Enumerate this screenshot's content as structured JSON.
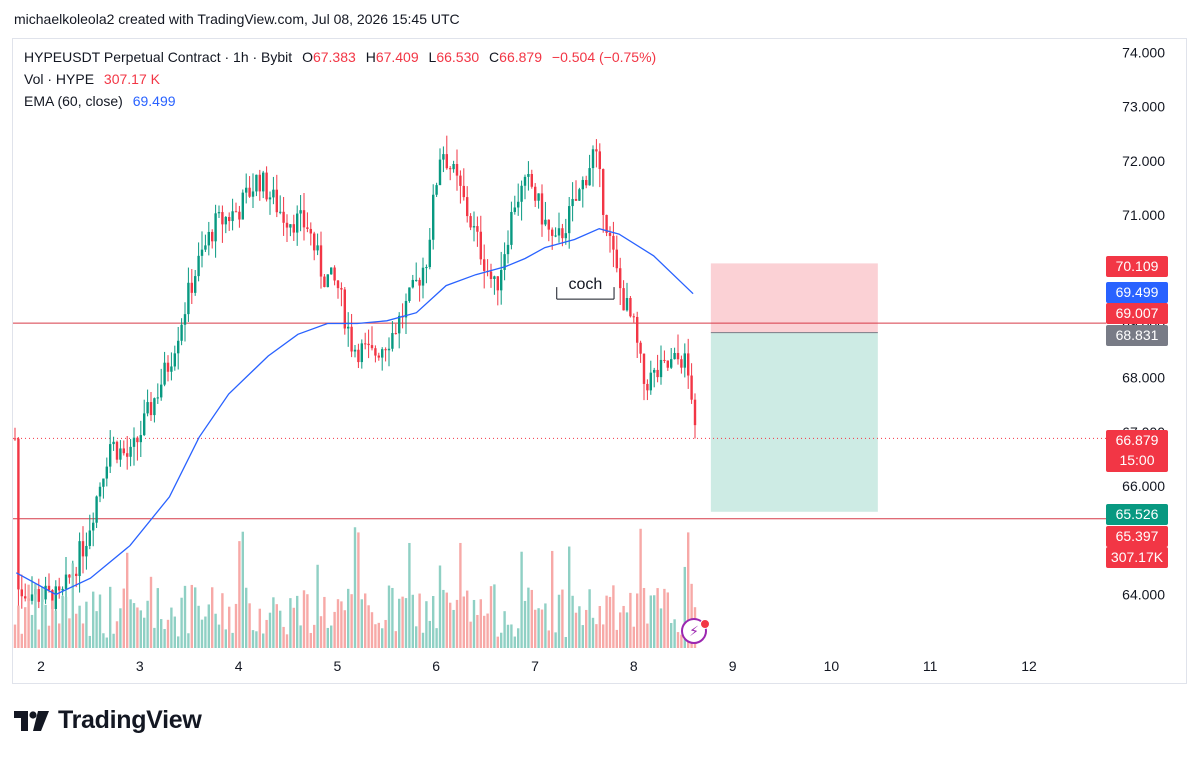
{
  "header": {
    "text": "michaelkoleola2 created with TradingView.com, Jul 08, 2026 15:45 UTC"
  },
  "legend": {
    "symbol": "HYPEUSDT Perpetual Contract · 1h · Bybit",
    "o_label": "O",
    "o_value": "67.383",
    "h_label": "H",
    "h_value": "67.409",
    "l_label": "L",
    "l_value": "66.530",
    "c_label": "C",
    "c_value": "66.879",
    "change": "−0.504 (−0.75%)",
    "vol_label": "Vol · HYPE",
    "vol_value": "307.17 K",
    "ema_label": "EMA (60, close)",
    "ema_value": "69.499"
  },
  "price_tags": {
    "tp_top": "70.109",
    "ema": "69.499",
    "hline_upper": "69.007",
    "entry": "68.831",
    "last_price": "66.879",
    "countdown": "15:00",
    "stop_bottom": "65.526",
    "hline_lower": "65.397",
    "volume": "307.17K"
  },
  "annotation": {
    "text": "coch"
  },
  "branding": {
    "name": "TradingView"
  },
  "colors": {
    "up": "#089981",
    "down": "#f23645",
    "ema": "#2962ff",
    "vol_up": "#8fd0c4",
    "vol_down": "#f7a9a7",
    "risk_zone": "#fbd1d5",
    "reward_zone": "#cdebe4",
    "hline": "#d63a48",
    "entry_tag": "#787b86"
  },
  "chart_data": {
    "type": "candlestick",
    "symbol": "HYPEUSDT",
    "timeframe": "1h",
    "y_axis": {
      "min": 63.5,
      "max": 74.3,
      "ticks": [
        "64.000",
        "66.000",
        "67.000",
        "68.000",
        "69.000",
        "70.000",
        "71.000",
        "72.000",
        "73.000",
        "74.000"
      ]
    },
    "x_axis": {
      "ticks": [
        "2",
        "3",
        "4",
        "5",
        "6",
        "7",
        "8",
        "9",
        "10",
        "11",
        "12"
      ]
    },
    "grid": false,
    "ohlc_swing_points": [
      [
        1.75,
        64.1
      ],
      [
        2.2,
        63.9
      ],
      [
        2.45,
        65.0
      ],
      [
        2.7,
        66.8
      ],
      [
        2.9,
        66.5
      ],
      [
        3.3,
        68.3
      ],
      [
        3.55,
        69.9
      ],
      [
        3.75,
        70.8
      ],
      [
        4.0,
        71.1
      ],
      [
        4.2,
        71.7
      ],
      [
        4.45,
        71.0
      ],
      [
        4.7,
        70.8
      ],
      [
        4.85,
        69.9
      ],
      [
        5.0,
        69.7
      ],
      [
        5.15,
        68.6
      ],
      [
        5.35,
        68.4
      ],
      [
        5.55,
        68.8
      ],
      [
        5.75,
        69.5
      ],
      [
        5.9,
        70.2
      ],
      [
        6.05,
        72.3
      ],
      [
        6.25,
        71.4
      ],
      [
        6.4,
        70.6
      ],
      [
        6.6,
        69.6
      ],
      [
        6.8,
        71.3
      ],
      [
        6.95,
        71.6
      ],
      [
        7.05,
        71.1
      ],
      [
        7.2,
        70.4
      ],
      [
        7.45,
        71.4
      ],
      [
        7.6,
        72.2
      ],
      [
        7.75,
        70.6
      ],
      [
        7.85,
        69.7
      ],
      [
        8.0,
        68.9
      ],
      [
        8.1,
        67.9
      ],
      [
        8.35,
        68.2
      ],
      [
        8.5,
        68.4
      ],
      [
        8.6,
        67.6
      ],
      [
        8.62,
        66.88
      ]
    ],
    "ema_series": {
      "name": "EMA (60, close)",
      "points": [
        [
          1.75,
          64.4
        ],
        [
          2.15,
          64.0
        ],
        [
          2.5,
          64.3
        ],
        [
          2.9,
          64.9
        ],
        [
          3.3,
          65.8
        ],
        [
          3.6,
          66.9
        ],
        [
          3.9,
          67.7
        ],
        [
          4.3,
          68.4
        ],
        [
          4.6,
          68.8
        ],
        [
          4.9,
          69.0
        ],
        [
          5.2,
          69.0
        ],
        [
          5.5,
          69.05
        ],
        [
          5.8,
          69.2
        ],
        [
          6.1,
          69.7
        ],
        [
          6.4,
          69.9
        ],
        [
          6.7,
          70.05
        ],
        [
          6.9,
          70.2
        ],
        [
          7.1,
          70.4
        ],
        [
          7.4,
          70.55
        ],
        [
          7.65,
          70.75
        ],
        [
          7.85,
          70.65
        ],
        [
          8.2,
          70.25
        ],
        [
          8.6,
          69.55
        ]
      ]
    },
    "volume_series": {
      "last": 307170,
      "unit": "HYPE"
    },
    "horizontal_lines": [
      69.007,
      65.397
    ],
    "position_tool": {
      "entry": 68.831,
      "target_top": 70.109,
      "target_bottom": 65.526,
      "start_day": 8.78,
      "end_day": 10.47
    },
    "annotation": {
      "text": "coch",
      "day_from": 7.22,
      "day_to": 7.8,
      "price": 69.45
    }
  }
}
